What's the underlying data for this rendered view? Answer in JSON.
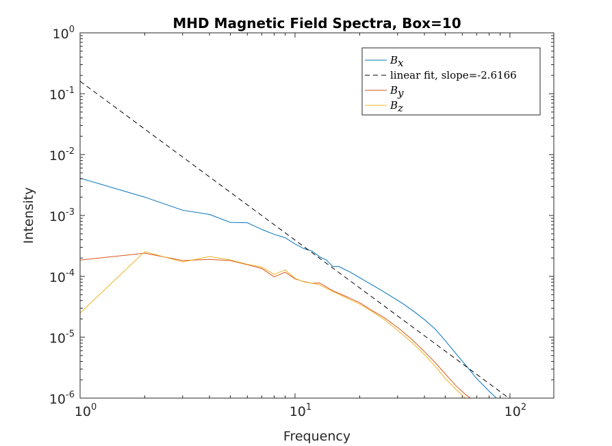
{
  "chart_data": {
    "type": "line",
    "title": "MHD Magnetic Field Spectra, Box=10",
    "xlabel": "Frequency",
    "ylabel": "Intensity",
    "xscale": "log",
    "yscale": "log",
    "xlim": [
      1,
      160
    ],
    "ylim": [
      1e-06,
      1
    ],
    "grid": false,
    "legend_position": "top-right",
    "x_ticks": [
      {
        "base": "10",
        "exp": "0",
        "value": 1
      },
      {
        "base": "10",
        "exp": "1",
        "value": 10
      },
      {
        "base": "10",
        "exp": "2",
        "value": 100
      }
    ],
    "y_ticks": [
      {
        "base": "10",
        "exp": "-6",
        "value": 1e-06
      },
      {
        "base": "10",
        "exp": "-5",
        "value": 1e-05
      },
      {
        "base": "10",
        "exp": "-4",
        "value": 0.0001
      },
      {
        "base": "10",
        "exp": "-3",
        "value": 0.001
      },
      {
        "base": "10",
        "exp": "-2",
        "value": 0.01
      },
      {
        "base": "10",
        "exp": "-1",
        "value": 0.1
      },
      {
        "base": "10",
        "exp": "0",
        "value": 1
      }
    ],
    "series": [
      {
        "name": "B_x",
        "legend_base": "B",
        "legend_sub": "x",
        "color": "#0072BD",
        "dash": "",
        "x": [
          1,
          2,
          3,
          4,
          5,
          6,
          7,
          8,
          9,
          10,
          11,
          12,
          13,
          14,
          15,
          16,
          18,
          20,
          22,
          25,
          28,
          32,
          36,
          40,
          45,
          50,
          56,
          63,
          70,
          80,
          90,
          95
        ],
        "y": [
          0.0041,
          0.002,
          0.00122,
          0.00104,
          0.00077,
          0.00076,
          0.00059,
          0.00049,
          0.00043,
          0.00034,
          0.000285,
          0.00026,
          0.00021,
          0.000185,
          0.000145,
          0.000145,
          0.000118,
          9.5e-05,
          7.8e-05,
          6e-05,
          4.7e-05,
          3.5e-05,
          2.6e-05,
          1.95e-05,
          1.35e-05,
          8.8e-06,
          5.4e-06,
          3.3e-06,
          2.1e-06,
          1.3e-06,
          8.8e-07,
          7.2e-07
        ]
      },
      {
        "name": "linear fit, slope=-2.6166",
        "legend_label": "linear fit, slope=-2.6166",
        "color": "#000000",
        "dash": "7,5",
        "x": [
          1,
          100
        ],
        "y": [
          0.16,
          9.7e-07
        ]
      },
      {
        "name": "B_y",
        "legend_base": "B",
        "legend_sub": "y",
        "color": "#D95319",
        "dash": "",
        "x": [
          1,
          2,
          3,
          4,
          5,
          6,
          7,
          8,
          9,
          10,
          11,
          12,
          13,
          15,
          17,
          20,
          23,
          26,
          30,
          35,
          40,
          45,
          50,
          56,
          63,
          70
        ],
        "y": [
          0.000185,
          0.00024,
          0.000182,
          0.00019,
          0.000182,
          0.000155,
          0.000135,
          9.8e-05,
          0.000117,
          9.1e-05,
          8.2e-05,
          7.7e-05,
          7.8e-05,
          5.8e-05,
          4.8e-05,
          3.7e-05,
          2.7e-05,
          2.1e-05,
          1.45e-05,
          9.2e-06,
          5.8e-06,
          3.8e-06,
          2.5e-06,
          1.6e-06,
          1.1e-06,
          8.5e-07
        ]
      },
      {
        "name": "B_z",
        "legend_base": "B",
        "legend_sub": "z",
        "color": "#EDB120",
        "dash": "",
        "x": [
          1,
          2,
          3,
          4,
          5,
          6,
          7,
          8,
          9,
          10,
          11,
          12,
          13,
          15,
          17,
          20,
          23,
          26,
          30,
          35,
          40,
          45,
          50,
          56,
          63,
          70
        ],
        "y": [
          2.5e-05,
          0.000255,
          0.000172,
          0.000212,
          0.000186,
          0.000158,
          0.000142,
          0.000108,
          0.000128,
          9.3e-05,
          8.1e-05,
          7.7e-05,
          7.3e-05,
          5.6e-05,
          4.6e-05,
          3.5e-05,
          2.6e-05,
          1.95e-05,
          1.3e-05,
          8.2e-06,
          5.2e-06,
          3.3e-06,
          2.1e-06,
          1.4e-06,
          9.5e-07,
          7.2e-07
        ]
      }
    ]
  }
}
